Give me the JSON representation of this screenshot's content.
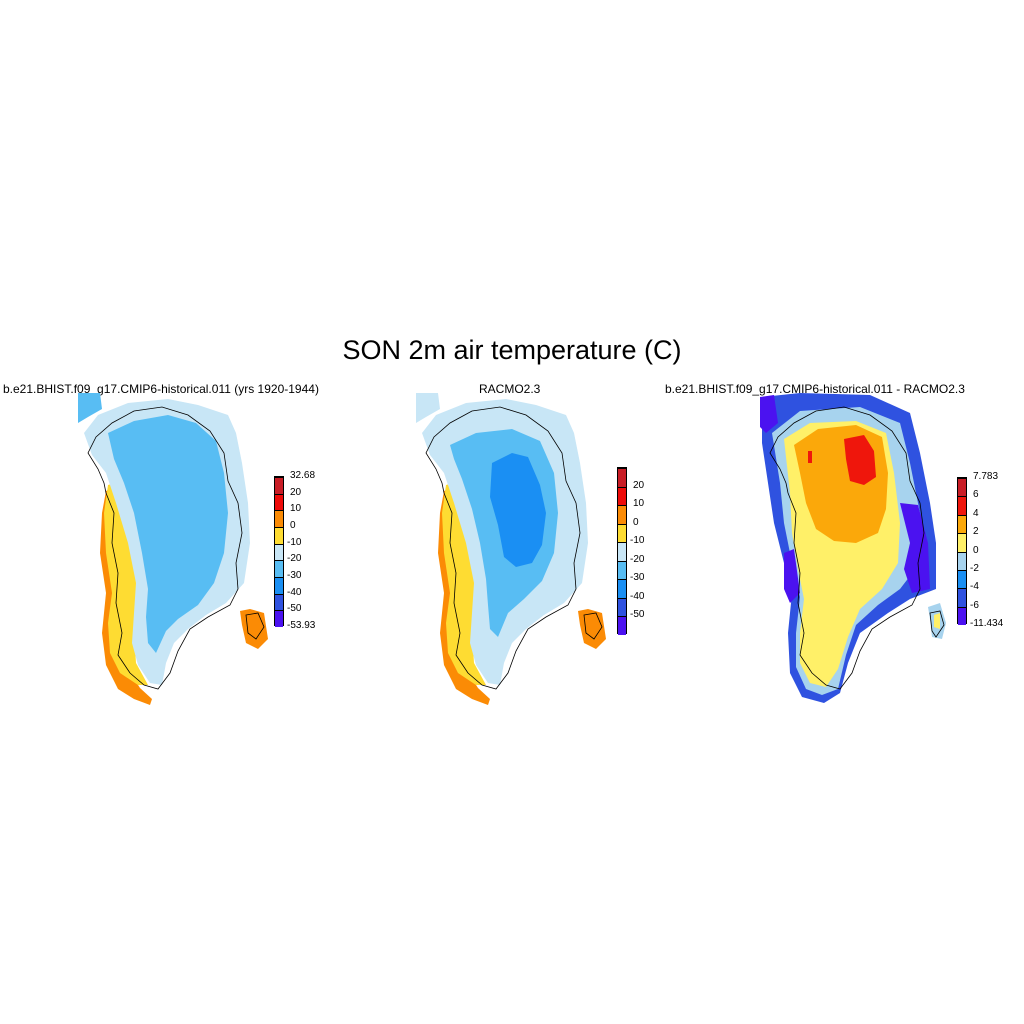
{
  "figure": {
    "title": "SON 2m air temperature (C)"
  },
  "panels": [
    {
      "title": "b.e21.BHIST.f09_g17.CMIP6-historical.011 (yrs 1920-1944)",
      "colorbar": {
        "colors": [
          "#4b12f0",
          "#2f52e0",
          "#1a8ff3",
          "#58bdf3",
          "#c8e6f6",
          "#fedc32",
          "#fb8b05",
          "#ee0b09",
          "#c91d26"
        ],
        "labels": [
          "-53.93",
          "-50",
          "-40",
          "-30",
          "-20",
          "-10",
          "0",
          "10",
          "20",
          "32.68"
        ]
      }
    },
    {
      "title": "RACMO2.3",
      "colorbar": {
        "colors": [
          "#4b12f0",
          "#2f52e0",
          "#1a8ff3",
          "#58bdf3",
          "#c8e6f6",
          "#fedc32",
          "#fb8b05",
          "#ee0b09",
          "#c91d26"
        ],
        "labels": [
          "-50",
          "-40",
          "-30",
          "-20",
          "-10",
          "0",
          "10",
          "20"
        ]
      }
    },
    {
      "title": "b.e21.BHIST.f09_g17.CMIP6-historical.011 - RACMO2.3",
      "colorbar": {
        "colors": [
          "#4b12f0",
          "#2f52e0",
          "#1a8ff3",
          "#a7d3ee",
          "#fff068",
          "#fba80a",
          "#ef160c",
          "#c91d26"
        ],
        "labels": [
          "-11.434",
          "-6",
          "-4",
          "-2",
          "0",
          "2",
          "4",
          "6",
          "7.783"
        ]
      }
    }
  ]
}
